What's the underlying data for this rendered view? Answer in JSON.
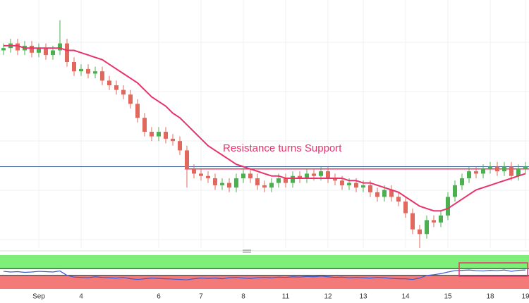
{
  "chart_data": {
    "type": "candlestick",
    "categories": [
      null,
      null,
      null,
      null,
      null,
      "Sep",
      null,
      null,
      null,
      null,
      null,
      "4",
      null,
      null,
      null,
      null,
      null,
      null,
      null,
      null,
      null,
      null,
      "6",
      null,
      null,
      null,
      null,
      null,
      "7",
      null,
      null,
      null,
      null,
      null,
      "8",
      null,
      null,
      null,
      null,
      null,
      "11",
      null,
      null,
      null,
      null,
      null,
      "12",
      null,
      null,
      null,
      null,
      "13",
      null,
      null,
      null,
      null,
      null,
      "14",
      null,
      null,
      null,
      null,
      null,
      "15",
      null,
      null,
      null,
      null,
      null,
      "18",
      null,
      null,
      null,
      null,
      "19"
    ],
    "open": [
      85,
      86,
      88,
      85,
      87,
      84,
      86,
      83,
      85,
      88,
      80,
      76,
      77,
      75,
      76,
      72,
      70,
      68,
      66,
      62,
      56,
      50,
      48,
      50,
      47,
      46,
      42,
      34,
      32,
      31,
      30,
      27,
      28,
      26,
      30,
      32,
      30,
      27,
      26,
      28,
      30,
      28,
      31,
      30,
      32,
      31,
      33,
      30,
      29,
      27,
      28,
      26,
      27,
      24,
      22,
      25,
      22,
      20,
      15,
      8,
      6,
      12,
      11,
      14,
      22,
      27,
      30,
      33,
      32,
      34,
      35,
      33,
      35,
      31,
      34
    ],
    "high": [
      88,
      90,
      90,
      89,
      89,
      88,
      88,
      87,
      98,
      90,
      82,
      79,
      79,
      78,
      78,
      74,
      72,
      70,
      68,
      64,
      58,
      52,
      52,
      52,
      49,
      48,
      44,
      36,
      34,
      33,
      32,
      30,
      30,
      32,
      34,
      34,
      32,
      29,
      30,
      32,
      32,
      33,
      33,
      34,
      34,
      35,
      35,
      32,
      31,
      30,
      30,
      29,
      29,
      26,
      27,
      27,
      24,
      22,
      17,
      10,
      14,
      14,
      16,
      24,
      29,
      32,
      35,
      35,
      36,
      37,
      37,
      37,
      37,
      36,
      37
    ],
    "low": [
      83,
      84,
      83,
      83,
      82,
      82,
      81,
      81,
      83,
      78,
      74,
      74,
      73,
      73,
      70,
      68,
      66,
      64,
      60,
      54,
      48,
      46,
      46,
      45,
      44,
      40,
      26,
      30,
      29,
      28,
      25,
      25,
      24,
      24,
      28,
      28,
      25,
      24,
      24,
      26,
      26,
      26,
      28,
      28,
      29,
      29,
      28,
      27,
      25,
      25,
      24,
      24,
      22,
      20,
      20,
      20,
      18,
      13,
      6,
      0,
      4,
      9,
      9,
      12,
      20,
      25,
      28,
      30,
      30,
      32,
      31,
      31,
      29,
      29,
      32
    ],
    "close": [
      86,
      88,
      85,
      87,
      84,
      86,
      83,
      85,
      88,
      80,
      76,
      77,
      75,
      76,
      72,
      70,
      68,
      66,
      62,
      56,
      50,
      48,
      50,
      47,
      46,
      42,
      34,
      32,
      31,
      30,
      27,
      28,
      26,
      30,
      32,
      30,
      27,
      26,
      28,
      30,
      28,
      31,
      30,
      32,
      31,
      33,
      30,
      29,
      27,
      28,
      26,
      27,
      24,
      22,
      25,
      22,
      20,
      15,
      8,
      6,
      12,
      11,
      14,
      22,
      27,
      30,
      33,
      32,
      34,
      35,
      33,
      35,
      31,
      34,
      35
    ],
    "up_color": "#4caf50",
    "down_color": "#e0685c",
    "ma": {
      "color": "#e8336b",
      "values": [
        87,
        87,
        87,
        86,
        86,
        86,
        86,
        86,
        86,
        85,
        85,
        84,
        83,
        82,
        81,
        79,
        77,
        75,
        73,
        71,
        68,
        65,
        63,
        61,
        58,
        56,
        53,
        50,
        47,
        44,
        42,
        40,
        38,
        36,
        35,
        34,
        33,
        32,
        31,
        31,
        30,
        30,
        30,
        30,
        30,
        30,
        30,
        30,
        30,
        29,
        29,
        28,
        28,
        27,
        26,
        25,
        24,
        22,
        20,
        18,
        17,
        16,
        16,
        17,
        19,
        21,
        23,
        25,
        26,
        27,
        28,
        29,
        30,
        31,
        32
      ]
    },
    "ylim": [
      0,
      100
    ],
    "support_line": {
      "value": 35,
      "color": "#3b5f9e"
    },
    "resistance_line": {
      "value": 34,
      "color": "#e8336b"
    },
    "annotation": {
      "text": "Resistance turns Support",
      "color": "#e8336b"
    },
    "indicator": {
      "ylim": [
        0,
        100
      ],
      "upper": 60,
      "lower": 40,
      "upper_color": "#7ef07a",
      "lower_color": "#f47a7a",
      "color": "#3a5bd0",
      "values": [
        52,
        50,
        51,
        49,
        50,
        52,
        51,
        50,
        53,
        40,
        35,
        34,
        33,
        36,
        34,
        33,
        32,
        34,
        30,
        28,
        30,
        32,
        31,
        30,
        29,
        28,
        27,
        30,
        32,
        31,
        32,
        30,
        33,
        34,
        32,
        31,
        33,
        34,
        33,
        35,
        34,
        36,
        35,
        37,
        36,
        38,
        36,
        34,
        35,
        33,
        34,
        33,
        32,
        34,
        33,
        31,
        30,
        30,
        28,
        32,
        40,
        42,
        45,
        50,
        54,
        55,
        56,
        54,
        53,
        55,
        54,
        56,
        52,
        55,
        56
      ]
    }
  }
}
